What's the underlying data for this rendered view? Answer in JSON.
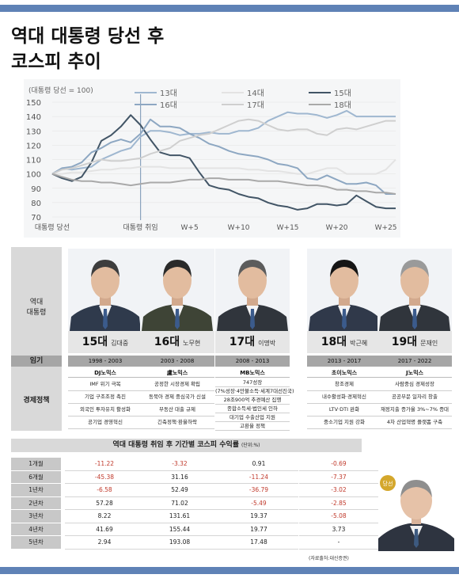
{
  "title_line1": "역대 대통령 당선 후",
  "title_line2": "코스피 추이",
  "chart_data": {
    "type": "line",
    "ylabel": "(대통령 당선 = 100)",
    "ylim": [
      70,
      150
    ],
    "yticks": [
      70,
      80,
      90,
      100,
      110,
      120,
      130,
      140,
      150
    ],
    "x_tick_labels": [
      {
        "x": 0,
        "label": "대통령 당선"
      },
      {
        "x": 9,
        "label": "대통령 취임"
      },
      {
        "x": 14,
        "label": "W+5"
      },
      {
        "x": 19,
        "label": "W+10"
      },
      {
        "x": 24,
        "label": "W+15"
      },
      {
        "x": 29,
        "label": "W+20"
      },
      {
        "x": 34,
        "label": "W+25"
      }
    ],
    "x_count": 36,
    "inauguration_x": 9,
    "legend_placement": "top-right",
    "series": [
      {
        "name": "13대",
        "color": "#9fb7d0",
        "values": [
          100,
          104,
          103,
          104,
          105,
          110,
          113,
          116,
          118,
          126,
          130,
          130,
          129,
          127,
          128,
          128,
          129,
          128,
          128,
          130,
          130,
          132,
          137,
          140,
          143,
          142,
          142,
          141,
          139,
          141,
          144,
          140,
          140,
          140,
          140,
          140
        ]
      },
      {
        "name": "14대",
        "color": "#e3e3e3",
        "values": [
          100,
          100,
          101,
          101,
          102,
          103,
          103,
          104,
          104,
          105,
          105,
          105,
          104,
          104,
          104,
          104,
          104,
          104,
          104,
          104,
          103,
          103,
          102,
          102,
          101,
          100,
          100,
          102,
          104,
          104,
          100,
          100,
          100,
          100,
          103,
          110
        ]
      },
      {
        "name": "15대",
        "color": "#425566",
        "values": [
          100,
          97,
          95,
          98,
          108,
          123,
          127,
          133,
          141,
          134,
          124,
          115,
          113,
          113,
          111,
          101,
          92,
          90,
          89,
          86,
          84,
          83,
          80,
          78,
          77,
          75,
          76,
          79,
          79,
          78,
          79,
          85,
          81,
          77,
          76,
          76
        ]
      },
      {
        "name": "16대",
        "color": "#8da7c2",
        "values": [
          100,
          104,
          105,
          108,
          115,
          118,
          122,
          124,
          122,
          128,
          138,
          133,
          133,
          132,
          128,
          125,
          121,
          119,
          116,
          114,
          113,
          112,
          110,
          107,
          106,
          104,
          97,
          96,
          99,
          96,
          93,
          93,
          94,
          92,
          86,
          86
        ]
      },
      {
        "name": "17대",
        "color": "#cfcfcf",
        "values": [
          100,
          103,
          104,
          106,
          108,
          110,
          109,
          109,
          110,
          111,
          114,
          116,
          118,
          123,
          125,
          127,
          128,
          131,
          134,
          137,
          138,
          137,
          134,
          131,
          130,
          131,
          131,
          128,
          127,
          131,
          132,
          131,
          133,
          135,
          137,
          137
        ]
      },
      {
        "name": "18대",
        "color": "#a9a9a9",
        "values": [
          100,
          98,
          96,
          95,
          95,
          94,
          94,
          93,
          92,
          93,
          94,
          94,
          94,
          95,
          96,
          96,
          97,
          97,
          96,
          96,
          96,
          95,
          95,
          95,
          94,
          93,
          92,
          92,
          91,
          89,
          89,
          88,
          88,
          87,
          87,
          86
        ]
      }
    ]
  },
  "presidents": {
    "label_photo": "역대\n대통령",
    "label_period": "임기",
    "label_policy": "경제정책",
    "items": [
      {
        "gen": "15대",
        "name": "김대중",
        "period": "1998 - 2003",
        "policy_title": "DJ노믹스",
        "policies": [
          "IMF 위기 극복",
          "기업 구조조정 촉진",
          "외국인 투자유치 활성화",
          "공기업 경영혁신"
        ]
      },
      {
        "gen": "16대",
        "name": "노무현",
        "period": "2003 - 2008",
        "policy_title": "盧노믹스",
        "policies": [
          "공정한 시장경제 확립",
          "동북아 경제 중심국가 신설",
          "부동산 대출 규제",
          "긴축정책·환율하락"
        ]
      },
      {
        "gen": "17대",
        "name": "이명박",
        "period": "2008 - 2013",
        "policy_title": "MB노믹스",
        "policies": [
          "747성장",
          "(7%성장·4만불소득·세계7대선진국)",
          "28조900억 추경예산 집행",
          "종합소득세·법인세 인하",
          "대기업 수출산업 지원",
          "고환율 정책"
        ]
      },
      {
        "gen": "18대",
        "name": "박근혜",
        "period": "2013 - 2017",
        "policy_title": "초이노믹스",
        "policies": [
          "창조경제",
          "내수활성화·경제혁신",
          "LTV·DTI 완화",
          "중소기업 지원 강화"
        ]
      },
      {
        "gen": "19대",
        "name": "문재인",
        "period": "2017 - 2022",
        "policy_title": "J노믹스",
        "policies": [
          "사람중심 경제성장",
          "공공부문 일자리 창출",
          "재정지출 증가율 3%~7% 증대",
          "4차 산업혁명 플랫폼 구축"
        ]
      }
    ]
  },
  "returns": {
    "header": "역대 대통령 취임 후 기간별 코스피 수익률",
    "unit": "(단위:%)",
    "periods": [
      "1개월",
      "6개월",
      "1년차",
      "2년차",
      "3년차",
      "4년차",
      "5년차"
    ],
    "columns": [
      {
        "name": "15대",
        "values": [
          "-11.22",
          "-45.38",
          "-6.58",
          "57.28",
          "8.22",
          "41.69",
          "2.94"
        ]
      },
      {
        "name": "16대",
        "values": [
          "-3.32",
          "31.16",
          "52.49",
          "71.02",
          "131.61",
          "155.44",
          "193.08"
        ]
      },
      {
        "name": "17대",
        "values": [
          "0.91",
          "-11.24",
          "-36.79",
          "-5.49",
          "19.37",
          "19.77",
          "17.48"
        ]
      },
      {
        "name": "18대",
        "values": [
          "-0.69",
          "-7.37",
          "-3.02",
          "-2.85",
          "-5.08",
          "3.73",
          "-"
        ]
      }
    ],
    "source": "(자료출처:대신증권)"
  },
  "moon_logo_text": "당선"
}
